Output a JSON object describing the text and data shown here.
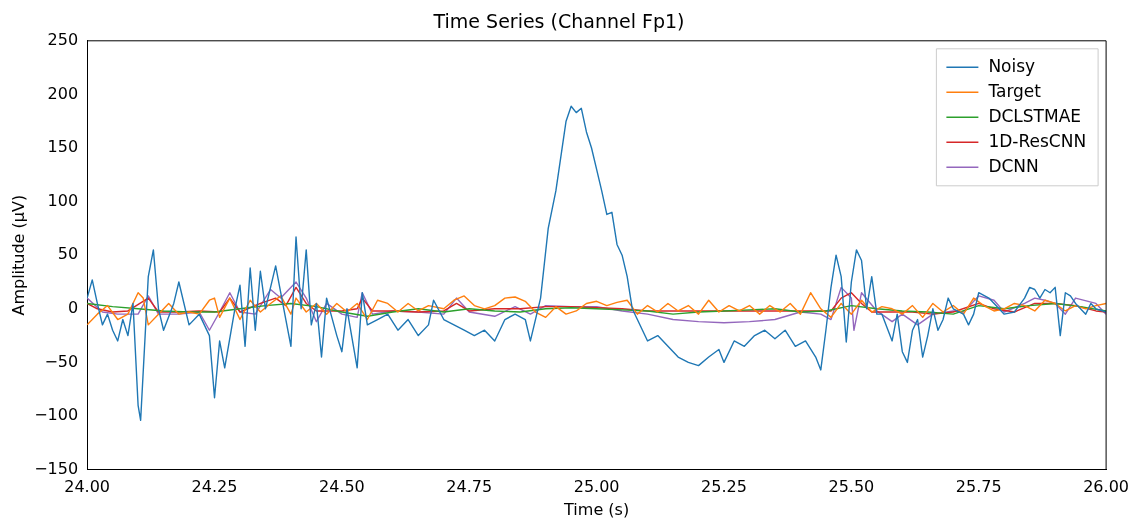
{
  "chart_data": {
    "type": "line",
    "title": "Time Series (Channel Fp1)",
    "xlabel": "Time (s)",
    "ylabel": "Amplitude (µV)",
    "xlim": [
      24,
      26
    ],
    "xticks": [
      {
        "value": 24,
        "label": "24.00"
      },
      {
        "value": 24.25,
        "label": "24.25"
      },
      {
        "value": 24.5,
        "label": "24.50"
      },
      {
        "value": 24.75,
        "label": "24.75"
      },
      {
        "value": 25,
        "label": "25.00"
      },
      {
        "value": 25.25,
        "label": "25.25"
      },
      {
        "value": 25.5,
        "label": "25.50"
      },
      {
        "value": 25.75,
        "label": "25.75"
      },
      {
        "value": 26,
        "label": "26.00"
      }
    ],
    "ylim": [
      -150,
      250
    ],
    "yticks": [
      -150,
      -100,
      -50,
      0,
      50,
      100,
      150,
      200,
      250
    ],
    "grid": false,
    "legend": "top right",
    "marker": "none",
    "line_style": "solid",
    "series": [
      {
        "name": "Noisy",
        "color": "#1f77b4",
        "x": [
          24,
          24.01,
          24.02,
          24.03,
          24.04,
          24.05,
          24.06,
          24.07,
          24.08,
          24.09,
          24.1,
          24.105,
          24.12,
          24.13,
          24.14,
          24.15,
          24.17,
          24.18,
          24.2,
          24.22,
          24.24,
          24.25,
          24.26,
          24.27,
          24.29,
          24.3,
          24.31,
          24.32,
          24.33,
          24.34,
          24.35,
          24.37,
          24.39,
          24.4,
          24.41,
          24.42,
          24.43,
          24.44,
          24.45,
          24.46,
          24.47,
          24.49,
          24.5,
          24.51,
          24.53,
          24.54,
          24.55,
          24.57,
          24.59,
          24.61,
          24.63,
          24.65,
          24.67,
          24.68,
          24.7,
          24.72,
          24.74,
          24.76,
          24.78,
          24.8,
          24.82,
          24.84,
          24.86,
          24.87,
          24.89,
          24.905,
          24.92,
          24.94,
          24.95,
          24.96,
          24.97,
          24.98,
          24.99,
          25,
          25.01,
          25.02,
          25.03,
          25.04,
          25.05,
          25.06,
          25.07,
          25.08,
          25.09,
          25.1,
          25.12,
          25.14,
          25.16,
          25.18,
          25.2,
          25.22,
          25.24,
          25.25,
          25.27,
          25.29,
          25.31,
          25.33,
          25.35,
          25.37,
          25.39,
          25.41,
          25.43,
          25.44,
          25.45,
          25.46,
          25.47,
          25.48,
          25.49,
          25.5,
          25.51,
          25.52,
          25.53,
          25.54,
          25.55,
          25.56,
          25.58,
          25.59,
          25.6,
          25.61,
          25.62,
          25.63,
          25.64,
          25.65,
          25.66,
          25.67,
          25.68,
          25.69,
          25.7,
          25.72,
          25.73,
          25.74,
          25.75,
          25.77,
          25.79,
          25.8,
          25.82,
          25.84,
          25.85,
          25.86,
          25.87,
          25.88,
          25.89,
          25.9,
          25.91,
          25.92,
          25.93,
          25.94,
          25.96,
          25.97,
          25.98,
          26
        ],
        "values": [
          10,
          27,
          5,
          -15,
          -5,
          -20,
          -30,
          -10,
          -25,
          5,
          -90,
          -104,
          30,
          55,
          0,
          -20,
          5,
          25,
          -15,
          -5,
          -25,
          -83,
          -30,
          -55,
          0,
          22,
          -35,
          38,
          -20,
          35,
          0,
          40,
          -10,
          -35,
          67,
          0,
          55,
          -15,
          5,
          -45,
          10,
          -25,
          -40,
          0,
          -55,
          15,
          -15,
          -10,
          -5,
          -20,
          -10,
          -25,
          -15,
          8,
          -10,
          -15,
          -20,
          -25,
          -20,
          -30,
          -10,
          -5,
          -10,
          -30,
          10,
          75,
          110,
          175,
          189,
          183,
          187,
          165,
          150,
          130,
          110,
          88,
          90,
          60,
          50,
          30,
          0,
          -10,
          -20,
          -30,
          -25,
          -35,
          -45,
          -50,
          -53,
          -45,
          -38,
          -50,
          -30,
          -35,
          -25,
          -20,
          -28,
          -20,
          -35,
          -30,
          -45,
          -57,
          -20,
          20,
          50,
          30,
          -31,
          25,
          55,
          45,
          0,
          30,
          -5,
          -5,
          -30,
          -5,
          -40,
          -50,
          -20,
          -10,
          -45,
          -25,
          0,
          -20,
          -10,
          10,
          0,
          -5,
          -15,
          -5,
          15,
          10,
          0,
          -5,
          -3,
          10,
          20,
          18,
          10,
          18,
          15,
          20,
          -25,
          15,
          12,
          5,
          -5,
          5,
          0,
          -3
        ]
      },
      {
        "name": "Target",
        "color": "#ff7f0e",
        "x": [
          24,
          24.02,
          24.04,
          24.06,
          24.08,
          24.1,
          24.11,
          24.12,
          24.14,
          24.16,
          24.18,
          24.2,
          24.22,
          24.24,
          24.25,
          24.26,
          24.28,
          24.3,
          24.32,
          24.34,
          24.36,
          24.38,
          24.4,
          24.41,
          24.43,
          24.45,
          24.47,
          24.49,
          24.51,
          24.53,
          24.55,
          24.57,
          24.59,
          24.61,
          24.63,
          24.65,
          24.67,
          24.7,
          24.72,
          24.74,
          24.76,
          24.78,
          24.8,
          24.82,
          24.84,
          24.86,
          24.88,
          24.9,
          24.92,
          24.94,
          24.96,
          24.98,
          25,
          25.02,
          25.04,
          25.06,
          25.08,
          25.1,
          25.12,
          25.14,
          25.16,
          25.18,
          25.2,
          25.22,
          25.24,
          25.26,
          25.28,
          25.3,
          25.32,
          25.34,
          25.36,
          25.38,
          25.4,
          25.42,
          25.44,
          25.46,
          25.48,
          25.5,
          25.52,
          25.54,
          25.56,
          25.58,
          25.6,
          25.62,
          25.64,
          25.66,
          25.68,
          25.7,
          25.72,
          25.74,
          25.76,
          25.78,
          25.8,
          25.82,
          25.84,
          25.86,
          25.88,
          25.9,
          25.92,
          25.94,
          25.96,
          25.98,
          26
        ],
        "values": [
          -15,
          -5,
          3,
          -10,
          -5,
          15,
          10,
          -15,
          -5,
          5,
          -5,
          -3,
          -5,
          8,
          10,
          -8,
          10,
          -10,
          8,
          -3,
          5,
          12,
          -5,
          10,
          -3,
          5,
          -5,
          5,
          -3,
          5,
          -10,
          8,
          5,
          -3,
          5,
          -2,
          3,
          0,
          8,
          12,
          3,
          0,
          3,
          10,
          11,
          7,
          -3,
          -8,
          2,
          -5,
          -2,
          5,
          7,
          3,
          6,
          8,
          -5,
          3,
          -3,
          5,
          -2,
          3,
          -5,
          8,
          -3,
          3,
          -2,
          3,
          -5,
          3,
          -3,
          5,
          -5,
          15,
          0,
          -8,
          5,
          -5,
          8,
          -3,
          2,
          0,
          -5,
          3,
          -8,
          5,
          -3,
          3,
          -5,
          10,
          3,
          -2,
          0,
          5,
          3,
          -2,
          8,
          5,
          -2,
          3,
          0,
          3,
          5
        ]
      },
      {
        "name": "DCLSTMAE",
        "color": "#2ca02c",
        "x": [
          24,
          24.05,
          24.1,
          24.15,
          24.2,
          24.25,
          24.3,
          24.35,
          24.4,
          24.45,
          24.5,
          24.55,
          24.6,
          24.65,
          24.7,
          24.75,
          24.8,
          24.85,
          24.9,
          24.95,
          25,
          25.05,
          25.1,
          25.15,
          25.2,
          25.25,
          25.3,
          25.35,
          25.4,
          25.45,
          25.5,
          25.55,
          25.6,
          25.65,
          25.7,
          25.75,
          25.8,
          25.85,
          25.9,
          25.95,
          26
        ],
        "values": [
          5,
          2,
          0,
          -2,
          -3,
          -3,
          0,
          3,
          5,
          2,
          -3,
          -7,
          -3,
          0,
          -3,
          0,
          -2,
          -3,
          0,
          1,
          0,
          -1,
          -2,
          -5,
          -3,
          -2,
          -1,
          0,
          -3,
          -2,
          3,
          0,
          -2,
          -3,
          -5,
          3,
          0,
          3,
          5,
          2,
          -2
        ]
      },
      {
        "name": "1D-ResCNN",
        "color": "#d62728",
        "x": [
          24,
          24.02,
          24.05,
          24.08,
          24.12,
          24.14,
          24.18,
          24.22,
          24.26,
          24.28,
          24.3,
          24.34,
          24.37,
          24.39,
          24.41,
          24.43,
          24.45,
          24.5,
          24.53,
          24.54,
          24.56,
          24.6,
          24.65,
          24.7,
          24.725,
          24.75,
          24.8,
          24.85,
          24.9,
          24.95,
          25,
          25.05,
          25.1,
          25.2,
          25.3,
          25.4,
          25.46,
          25.48,
          25.5,
          25.52,
          25.54,
          25.58,
          25.62,
          25.66,
          25.7,
          25.75,
          25.78,
          25.82,
          25.86,
          25.9,
          25.94,
          25.98,
          26
        ],
        "values": [
          5,
          0,
          -3,
          -2,
          10,
          -3,
          -3,
          -2,
          -3,
          10,
          -3,
          5,
          10,
          3,
          20,
          5,
          -2,
          -2,
          0,
          10,
          -2,
          -2,
          -3,
          -2,
          5,
          -2,
          0,
          0,
          2,
          2,
          1,
          0,
          -2,
          -2,
          -2,
          -2,
          -2,
          10,
          15,
          5,
          -3,
          -3,
          -3,
          -5,
          -3,
          5,
          0,
          -3,
          5,
          5,
          3,
          -2,
          -3
        ]
      },
      {
        "name": "DCNN",
        "color": "#9467bd",
        "x": [
          24,
          24.03,
          24.06,
          24.1,
          24.12,
          24.14,
          24.18,
          24.22,
          24.24,
          24.26,
          24.28,
          24.3,
          24.33,
          24.36,
          24.38,
          24.41,
          24.43,
          24.45,
          24.47,
          24.5,
          24.53,
          24.54,
          24.56,
          24.6,
          24.65,
          24.7,
          24.725,
          24.75,
          24.8,
          24.84,
          24.87,
          24.9,
          24.95,
          25,
          25.05,
          25.1,
          25.15,
          25.2,
          25.25,
          25.3,
          25.35,
          25.4,
          25.44,
          25.46,
          25.48,
          25.5,
          25.505,
          25.52,
          25.55,
          25.58,
          25.6,
          25.63,
          25.66,
          25.7,
          25.72,
          25.75,
          25.78,
          25.8,
          25.84,
          25.86,
          25.88,
          25.9,
          25.92,
          25.94,
          25.98,
          26
        ],
        "values": [
          10,
          -3,
          -5,
          -5,
          12,
          -5,
          -5,
          -3,
          -20,
          -3,
          15,
          -3,
          -5,
          18,
          10,
          25,
          10,
          -12,
          5,
          -5,
          -8,
          15,
          -5,
          -2,
          -3,
          -5,
          10,
          -3,
          -7,
          2,
          -5,
          3,
          2,
          2,
          -2,
          -5,
          -10,
          -12,
          -13,
          -12,
          -10,
          -3,
          -5,
          -10,
          20,
          10,
          -20,
          15,
          -2,
          -12,
          -5,
          -15,
          -5,
          -2,
          -3,
          12,
          8,
          -3,
          5,
          10,
          8,
          5,
          -5,
          10,
          5,
          -5
        ]
      }
    ]
  }
}
